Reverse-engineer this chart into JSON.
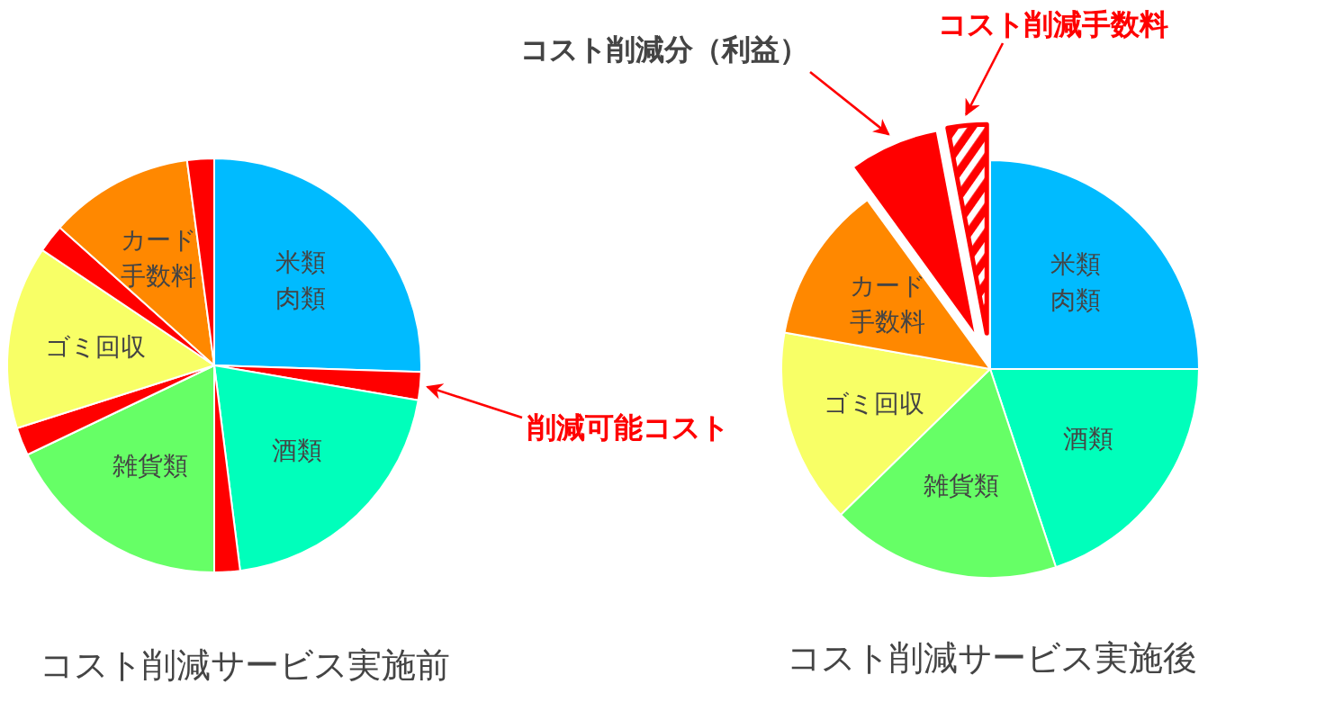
{
  "chart_data": [
    {
      "type": "pie",
      "title": "コスト削減サービス実施前",
      "categories": [
        "米類肉類",
        null,
        "酒類",
        null,
        "雑貨類",
        null,
        "ゴミ回収",
        null,
        "カード手数料",
        null
      ],
      "values": [
        25.5,
        2.2,
        20.3,
        2.0,
        17.9,
        2.2,
        14.3,
        2.2,
        11.3,
        2.1
      ],
      "colors": [
        "#00bbff",
        "#ff0000",
        "#00ffbb",
        "#ff0000",
        "#66ff66",
        "#ff0000",
        "#f8ff66",
        "#ff0000",
        "#ff8800",
        "#ff0000"
      ],
      "annotations": [
        "削減可能コスト"
      ]
    },
    {
      "type": "pie",
      "title": "コスト削減サービス実施後",
      "categories": [
        "米類肉類",
        "酒類",
        "雑貨類",
        "ゴミ回収",
        "カード手数料",
        null,
        null
      ],
      "values": [
        25,
        19.9,
        17.8,
        15.1,
        12.2,
        7.0,
        3.0
      ],
      "colors": [
        "#00bbff",
        "#00ffbb",
        "#66ff66",
        "#f8ff66",
        "#ff8800",
        "#ff0000",
        "#ff0000"
      ],
      "annotations": [
        "コスト削減分（利益）",
        "コスト削減手数料"
      ]
    }
  ]
}
